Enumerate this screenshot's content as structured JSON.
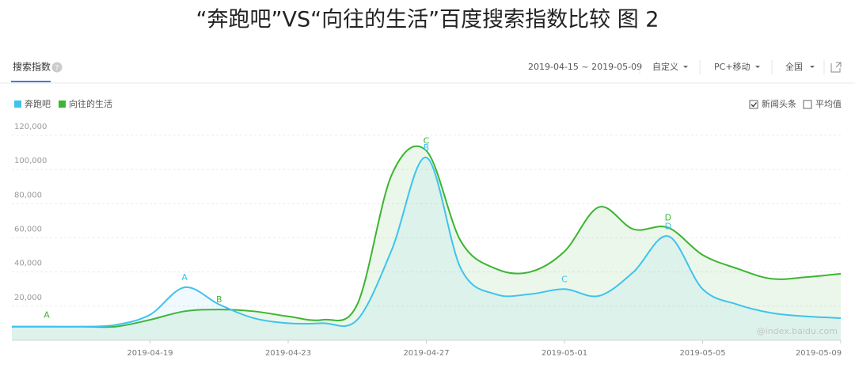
{
  "header": {
    "title": "“奔跑吧”VS“向往的生活”百度搜索指数比较 图 2"
  },
  "toolbar": {
    "tab": "搜索指数",
    "help": "?",
    "date_range": "2019-04-15 ~ 2019-05-09",
    "custom": "自定义",
    "device": "PC+移动",
    "region": "全国"
  },
  "chart_data": {
    "type": "line",
    "x": [
      "2019-04-15",
      "2019-04-16",
      "2019-04-17",
      "2019-04-18",
      "2019-04-19",
      "2019-04-20",
      "2019-04-21",
      "2019-04-22",
      "2019-04-23",
      "2019-04-24",
      "2019-04-25",
      "2019-04-26",
      "2019-04-27",
      "2019-04-28",
      "2019-04-29",
      "2019-04-30",
      "2019-05-01",
      "2019-05-02",
      "2019-05-03",
      "2019-05-04",
      "2019-05-05",
      "2019-05-06",
      "2019-05-07",
      "2019-05-08",
      "2019-05-09"
    ],
    "xticks": [
      "2019-04-19",
      "2019-04-23",
      "2019-04-27",
      "2019-05-01",
      "2019-05-05",
      "2019-05-09"
    ],
    "series": [
      {
        "name": "奔跑吧",
        "color": "#3ec3ee",
        "values": [
          8000,
          8000,
          8000,
          9000,
          15000,
          31000,
          21000,
          13000,
          10000,
          10000,
          12000,
          53000,
          107000,
          42000,
          27000,
          27000,
          30000,
          26000,
          40000,
          61000,
          30000,
          21000,
          16000,
          14000,
          13000
        ]
      },
      {
        "name": "向往的生活",
        "color": "#3cb531",
        "values": [
          8000,
          8000,
          8000,
          8000,
          12000,
          17000,
          18000,
          17000,
          14000,
          12000,
          21000,
          97000,
          111000,
          58000,
          42000,
          40000,
          52000,
          78000,
          65000,
          66000,
          50000,
          42000,
          36000,
          37000,
          39000
        ]
      }
    ],
    "annotations": [
      {
        "text": "A",
        "series": 1,
        "x": "2019-04-15"
      },
      {
        "text": "A",
        "series": 0,
        "x": "2019-04-20"
      },
      {
        "text": "B",
        "series": 1,
        "x": "2019-04-21"
      },
      {
        "text": "C",
        "series": 1,
        "x": "2019-04-27"
      },
      {
        "text": "B",
        "series": 0,
        "x": "2019-04-27"
      },
      {
        "text": "C",
        "series": 0,
        "x": "2019-05-01"
      },
      {
        "text": "D",
        "series": 1,
        "x": "2019-05-04"
      },
      {
        "text": "D",
        "series": 0,
        "x": "2019-05-04"
      }
    ],
    "ylim": [
      0,
      120000
    ],
    "yticks": [
      {
        "value": 20000,
        "label": "20,000"
      },
      {
        "value": 40000,
        "label": "40,000"
      },
      {
        "value": 60000,
        "label": "60,000"
      },
      {
        "value": 80000,
        "label": "80,000"
      },
      {
        "value": 100000,
        "label": "100,000"
      },
      {
        "value": 120000,
        "label": "120,000"
      }
    ],
    "grid": true,
    "options": [
      {
        "label": "新闻头条",
        "checked": true
      },
      {
        "label": "平均值",
        "checked": false
      }
    ],
    "watermark": "@index.baidu.com"
  }
}
